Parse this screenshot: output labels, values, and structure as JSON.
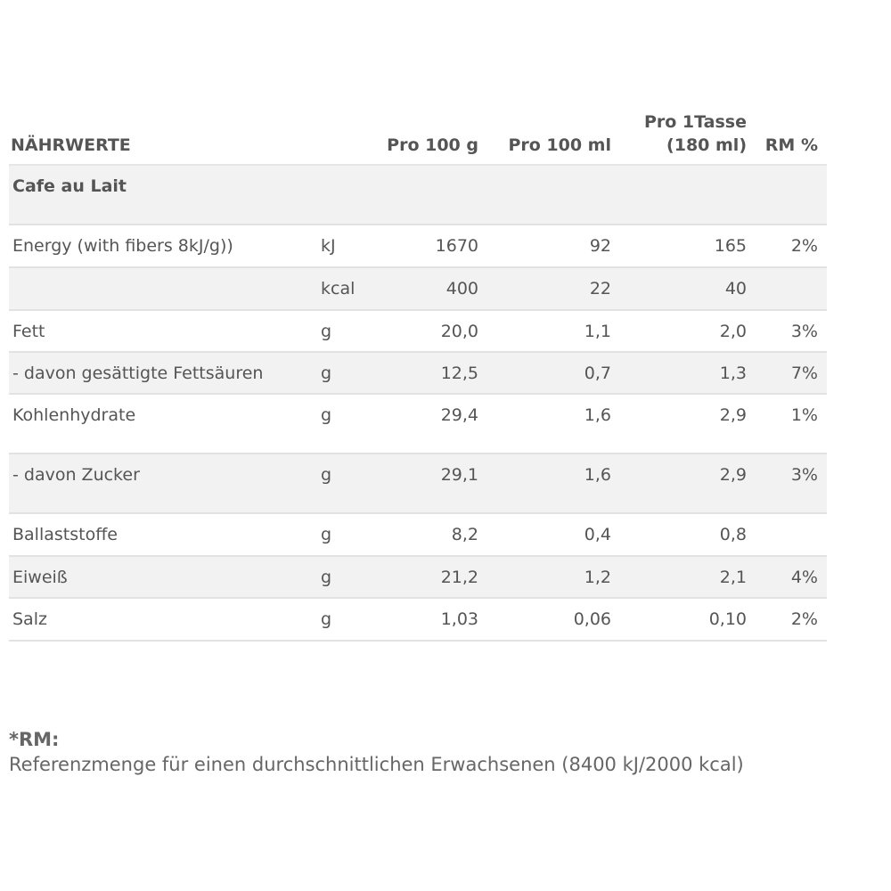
{
  "header": {
    "name": "NÄHRWERTE",
    "col1": "Pro 100 g",
    "col2": "Pro 100 ml",
    "col3_line1": "Pro 1Tasse",
    "col3_line2": "(180 ml)",
    "col4": "RM %"
  },
  "product": "Cafe au Lait",
  "rows": [
    {
      "name": "Energy (with fibers 8kJ/g))",
      "unit": "kJ",
      "g100": "1670",
      "ml100": "92",
      "cup": "165",
      "rm": "2%"
    },
    {
      "name": "",
      "unit": "kcal",
      "g100": "400",
      "ml100": "22",
      "cup": "40",
      "rm": ""
    },
    {
      "name": "Fett",
      "unit": "g",
      "g100": "20,0",
      "ml100": "1,1",
      "cup": "2,0",
      "rm": "3%"
    },
    {
      "name": "- davon gesättigte Fettsäuren",
      "unit": "g",
      "g100": "12,5",
      "ml100": "0,7",
      "cup": "1,3",
      "rm": "7%"
    },
    {
      "name": "Kohlenhydrate",
      "unit": "g",
      "g100": "29,4",
      "ml100": "1,6",
      "cup": "2,9",
      "rm": "1%"
    },
    {
      "name": "- davon Zucker",
      "unit": "g",
      "g100": "29,1",
      "ml100": "1,6",
      "cup": "2,9",
      "rm": "3%"
    },
    {
      "name": "Ballaststoffe",
      "unit": "g",
      "g100": "8,2",
      "ml100": "0,4",
      "cup": "0,8",
      "rm": ""
    },
    {
      "name": "Eiweiß",
      "unit": "g",
      "g100": "21,2",
      "ml100": "1,2",
      "cup": "2,1",
      "rm": "4%"
    },
    {
      "name": "Salz",
      "unit": "g",
      "g100": "1,03",
      "ml100": "0,06",
      "cup": "0,10",
      "rm": "2%"
    }
  ],
  "footnote": {
    "label": "*RM:",
    "text": "Referenzmenge für einen durchschnittlichen Erwachsenen (8400 kJ/2000 kcal)"
  }
}
